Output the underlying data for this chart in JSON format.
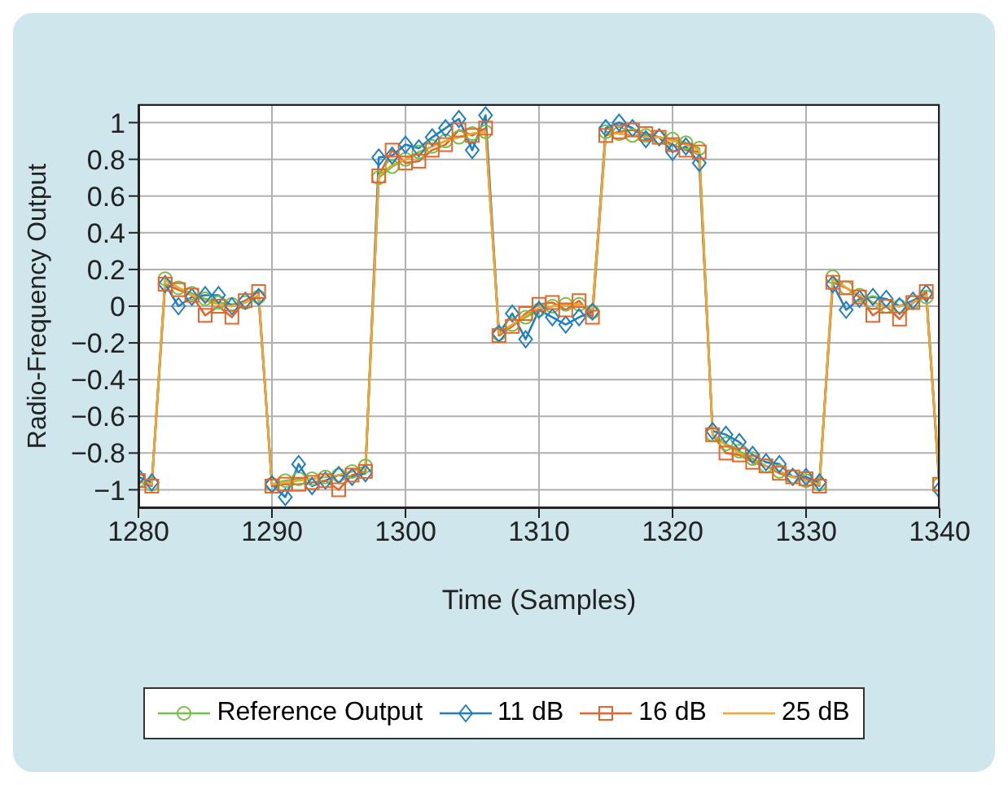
{
  "chart_data": {
    "type": "line",
    "xlabel": "Time (Samples)",
    "ylabel": "Radio-Frequency Output",
    "x": [
      1280,
      1281,
      1282,
      1283,
      1284,
      1285,
      1286,
      1287,
      1288,
      1289,
      1290,
      1291,
      1292,
      1293,
      1294,
      1295,
      1296,
      1297,
      1298,
      1299,
      1300,
      1301,
      1302,
      1303,
      1304,
      1305,
      1306,
      1307,
      1308,
      1309,
      1310,
      1311,
      1312,
      1313,
      1314,
      1315,
      1316,
      1317,
      1318,
      1319,
      1320,
      1321,
      1322,
      1323,
      1324,
      1325,
      1326,
      1327,
      1328,
      1329,
      1330,
      1331,
      1332,
      1333,
      1334,
      1335,
      1336,
      1337,
      1338,
      1339,
      1340
    ],
    "xlim": [
      1280,
      1340
    ],
    "xticks": [
      1280,
      1290,
      1300,
      1310,
      1320,
      1330,
      1340
    ],
    "ylim": [
      -1.1,
      1.1
    ],
    "yticks": [
      -1,
      -0.8,
      -0.6,
      -0.4,
      -0.2,
      0,
      0.2,
      0.4,
      0.6,
      0.8,
      1
    ],
    "grid": true,
    "legend": "bottom",
    "series": [
      {
        "name": "Reference Output",
        "color": "#77c043",
        "marker": "circle",
        "values": [
          -0.95,
          -0.97,
          0.15,
          0.1,
          0.07,
          0.04,
          0.02,
          0.01,
          0.02,
          0.05,
          -0.97,
          -0.95,
          -0.94,
          -0.94,
          -0.93,
          -0.92,
          -0.9,
          -0.87,
          0.7,
          0.76,
          0.8,
          0.84,
          0.87,
          0.9,
          0.92,
          0.94,
          0.95,
          -0.15,
          -0.1,
          -0.06,
          -0.02,
          0,
          0.01,
          0.01,
          -0.03,
          0.95,
          0.94,
          0.93,
          0.93,
          0.92,
          0.91,
          0.89,
          0.86,
          -0.7,
          -0.75,
          -0.79,
          -0.83,
          -0.87,
          -0.9,
          -0.93,
          -0.95,
          -0.97,
          0.16,
          0.1,
          0.06,
          0.02,
          0,
          0,
          0.02,
          0.05,
          -0.97
        ]
      },
      {
        "name": "11 dB",
        "color": "#1f7fc4",
        "marker": "diamond",
        "values": [
          -0.93,
          -0.96,
          0.12,
          0,
          0.05,
          0.06,
          0.06,
          0,
          0.03,
          0.05,
          -0.97,
          -1.04,
          -0.86,
          -0.98,
          -0.95,
          -0.92,
          -0.93,
          -0.91,
          0.81,
          0.82,
          0.88,
          0.86,
          0.92,
          0.97,
          1.02,
          0.85,
          1.04,
          -0.15,
          -0.04,
          -0.18,
          -0.02,
          -0.06,
          -0.1,
          -0.06,
          -0.03,
          0.97,
          1,
          0.97,
          0.91,
          0.92,
          0.84,
          0.87,
          0.78,
          -0.68,
          -0.7,
          -0.74,
          -0.81,
          -0.85,
          -0.86,
          -0.93,
          -0.93,
          -0.96,
          0.12,
          -0.02,
          0.04,
          0.05,
          0.04,
          0,
          0.03,
          0.07,
          -1
        ]
      },
      {
        "name": "16 dB",
        "color": "#e8652a",
        "marker": "square",
        "values": [
          -0.95,
          -0.98,
          0.12,
          0.09,
          0.06,
          -0.05,
          0,
          -0.06,
          0.03,
          0.08,
          -0.98,
          -0.97,
          -0.97,
          -0.96,
          -0.95,
          -1,
          -0.92,
          -0.9,
          0.71,
          0.85,
          0.78,
          0.79,
          0.85,
          0.88,
          0.96,
          0.93,
          0.97,
          -0.16,
          -0.11,
          -0.04,
          0.01,
          0.02,
          -0.02,
          0.03,
          -0.06,
          0.93,
          0.95,
          0.96,
          0.94,
          0.92,
          0.88,
          0.85,
          0.84,
          -0.7,
          -0.8,
          -0.81,
          -0.85,
          -0.87,
          -0.91,
          -0.93,
          -0.94,
          -0.98,
          0.13,
          0.1,
          0.05,
          -0.05,
          0,
          -0.07,
          0.02,
          0.08,
          -0.97
        ]
      },
      {
        "name": "25 dB",
        "color": "#f0a830",
        "marker": "none",
        "values": [
          -0.95,
          -0.97,
          0.14,
          0.1,
          0.06,
          0.03,
          0.01,
          0,
          0.02,
          0.06,
          -0.97,
          -0.96,
          -0.95,
          -0.94,
          -0.93,
          -0.92,
          -0.9,
          -0.88,
          0.71,
          0.77,
          0.8,
          0.83,
          0.87,
          0.9,
          0.92,
          0.94,
          0.95,
          -0.15,
          -0.1,
          -0.05,
          -0.01,
          0,
          0.01,
          0.01,
          -0.02,
          0.94,
          0.94,
          0.93,
          0.92,
          0.92,
          0.9,
          0.88,
          0.85,
          -0.7,
          -0.76,
          -0.8,
          -0.84,
          -0.87,
          -0.9,
          -0.93,
          -0.95,
          -0.97,
          0.15,
          0.1,
          0.06,
          0.02,
          0,
          0,
          0.02,
          0.06,
          -0.97
        ]
      }
    ]
  }
}
